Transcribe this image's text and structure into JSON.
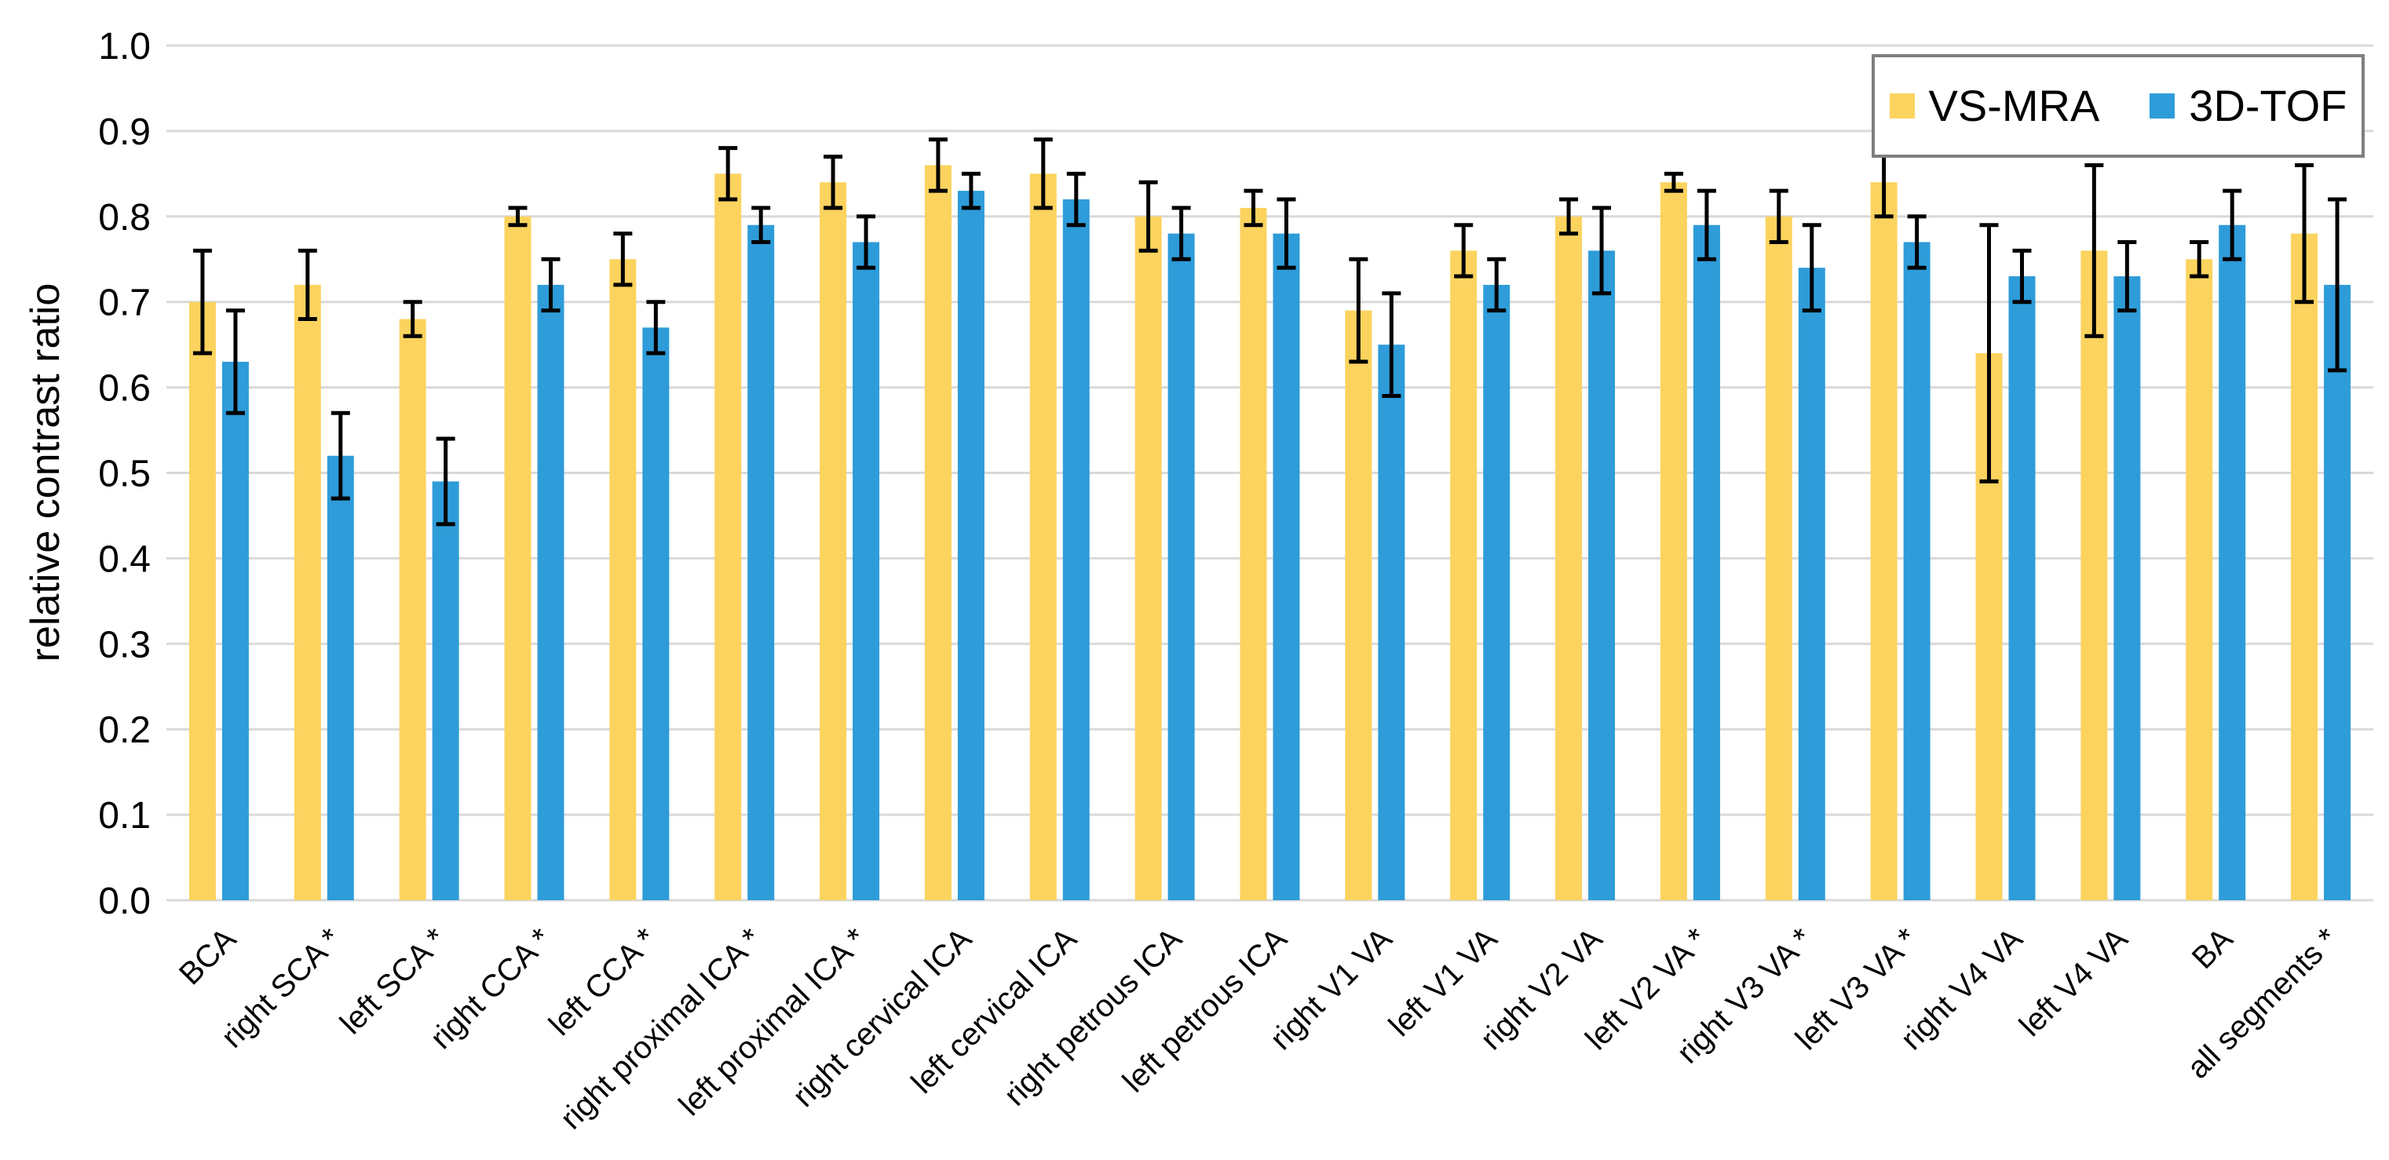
{
  "figure": {
    "background_color": "#ffffff"
  },
  "legend": {
    "position": "top-right",
    "border_color": "#7f7f7f"
  },
  "chart_data": {
    "type": "bar",
    "title": "",
    "xlabel": "",
    "ylabel": "relative contrast ratio",
    "ylim": [
      0.0,
      1.0
    ],
    "ytick_step": 0.1,
    "yticks": [
      "0.0",
      "0.1",
      "0.2",
      "0.3",
      "0.4",
      "0.5",
      "0.6",
      "0.7",
      "0.8",
      "0.9",
      "1.0"
    ],
    "grid": true,
    "gridline_color": "#d9d9d9",
    "error_bar_color": "#000000",
    "legend_position": "top-right",
    "categories": [
      "BCA",
      "right SCA *",
      "left SCA *",
      "right CCA *",
      "left CCA *",
      "right proximal ICA *",
      "left proximal ICA *",
      "right cervical ICA",
      "left cervical ICA",
      "right petrous ICA",
      "left petrous ICA",
      "right V1 VA",
      "left V1 VA",
      "right V2 VA",
      "left V2 VA *",
      "right V3 VA *",
      "left V3 VA *",
      "right V4 VA",
      "left V4 VA",
      "BA",
      "all segments *"
    ],
    "series": [
      {
        "name": "VS-MRA",
        "color": "#fbd35e",
        "values": [
          0.7,
          0.72,
          0.68,
          0.8,
          0.75,
          0.85,
          0.84,
          0.86,
          0.85,
          0.8,
          0.81,
          0.69,
          0.76,
          0.8,
          0.84,
          0.8,
          0.84,
          0.64,
          0.76,
          0.75,
          0.78
        ],
        "whisker_low": [
          0.64,
          0.68,
          0.66,
          0.79,
          0.72,
          0.82,
          0.81,
          0.83,
          0.81,
          0.76,
          0.79,
          0.63,
          0.73,
          0.78,
          0.83,
          0.77,
          0.8,
          0.49,
          0.66,
          0.73,
          0.7
        ],
        "whisker_high": [
          0.76,
          0.76,
          0.7,
          0.81,
          0.78,
          0.88,
          0.87,
          0.89,
          0.89,
          0.84,
          0.83,
          0.75,
          0.79,
          0.82,
          0.85,
          0.83,
          0.88,
          0.79,
          0.86,
          0.77,
          0.86
        ]
      },
      {
        "name": "3D-TOF",
        "color": "#2e9cd9",
        "values": [
          0.63,
          0.52,
          0.49,
          0.72,
          0.67,
          0.79,
          0.77,
          0.83,
          0.82,
          0.78,
          0.78,
          0.65,
          0.72,
          0.76,
          0.79,
          0.74,
          0.77,
          0.73,
          0.73,
          0.79,
          0.72
        ],
        "whisker_low": [
          0.57,
          0.47,
          0.44,
          0.69,
          0.64,
          0.77,
          0.74,
          0.81,
          0.79,
          0.75,
          0.74,
          0.59,
          0.69,
          0.71,
          0.75,
          0.69,
          0.74,
          0.7,
          0.69,
          0.75,
          0.62
        ],
        "whisker_high": [
          0.69,
          0.57,
          0.54,
          0.75,
          0.7,
          0.81,
          0.8,
          0.85,
          0.85,
          0.81,
          0.82,
          0.71,
          0.75,
          0.81,
          0.83,
          0.79,
          0.8,
          0.76,
          0.77,
          0.83,
          0.82
        ]
      }
    ]
  }
}
